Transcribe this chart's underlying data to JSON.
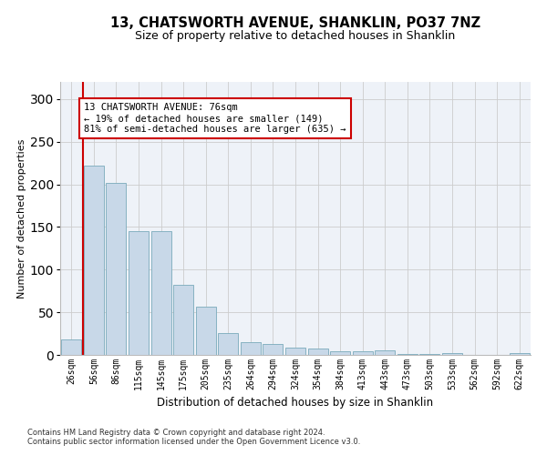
{
  "title": "13, CHATSWORTH AVENUE, SHANKLIN, PO37 7NZ",
  "subtitle": "Size of property relative to detached houses in Shanklin",
  "xlabel": "Distribution of detached houses by size in Shanklin",
  "ylabel": "Number of detached properties",
  "bar_color": "#c8d8e8",
  "bar_edge_color": "#7aaabb",
  "marker_line_color": "#cc0000",
  "annotation_text": "13 CHATSWORTH AVENUE: 76sqm\n← 19% of detached houses are smaller (149)\n81% of semi-detached houses are larger (635) →",
  "annotation_box_color": "#ffffff",
  "annotation_box_edge": "#cc0000",
  "categories": [
    "26sqm",
    "56sqm",
    "86sqm",
    "115sqm",
    "145sqm",
    "175sqm",
    "205sqm",
    "235sqm",
    "264sqm",
    "294sqm",
    "324sqm",
    "354sqm",
    "384sqm",
    "413sqm",
    "443sqm",
    "473sqm",
    "503sqm",
    "533sqm",
    "562sqm",
    "592sqm",
    "622sqm"
  ],
  "values": [
    18,
    222,
    202,
    145,
    145,
    82,
    57,
    26,
    15,
    13,
    9,
    7,
    4,
    4,
    5,
    1,
    1,
    2,
    0,
    0,
    2
  ],
  "ylim": [
    0,
    320
  ],
  "yticks": [
    0,
    50,
    100,
    150,
    200,
    250,
    300
  ],
  "bg_color": "#eef2f8",
  "footer1": "Contains HM Land Registry data © Crown copyright and database right 2024.",
  "footer2": "Contains public sector information licensed under the Open Government Licence v3.0."
}
